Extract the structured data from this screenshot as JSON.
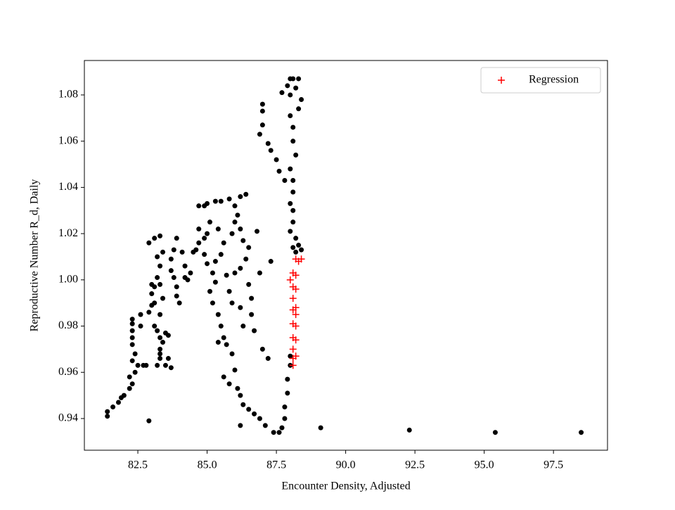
{
  "chart_data": {
    "type": "scatter",
    "xlabel": "Encounter Density, Adjusted",
    "ylabel": "Reproductive Number R_d, Daily",
    "xlim": [
      80.57,
      99.45
    ],
    "ylim": [
      0.9263,
      1.0949
    ],
    "xticks": [
      82.5,
      {
        "value": 85,
        "label": "85.0"
      },
      87.5,
      {
        "value": 90,
        "label": "90.0"
      },
      92.5,
      {
        "value": 95,
        "label": "95.0"
      },
      97.5
    ],
    "yticks": [
      0.94,
      0.96,
      0.98,
      {
        "value": 1,
        "label": "1.00"
      },
      1.02,
      1.04,
      1.06,
      1.08
    ],
    "legend": "upper right",
    "series": [
      {
        "color": "#000000",
        "marker": "circle",
        "x": [
          81.4,
          81.4,
          81.6,
          81.8,
          81.9,
          82.0,
          82.2,
          82.3,
          82.2,
          82.4,
          82.5,
          82.3,
          82.4,
          82.3,
          82.3,
          82.3,
          82.3,
          82.3,
          82.6,
          82.6,
          82.9,
          83.0,
          83.1,
          83.0,
          83.1,
          83.0,
          82.9,
          83.1,
          83.3,
          83.4,
          83.2,
          83.3,
          83.2,
          83.3,
          83.4,
          83.3,
          83.2,
          83.3,
          83.1,
          83.5,
          83.6,
          83.4,
          83.3,
          83.3,
          83.2,
          83.5,
          83.7,
          82.8,
          82.7,
          82.9,
          83.6,
          83.3,
          83.7,
          83.7,
          83.8,
          83.9,
          83.9,
          84.0,
          83.8,
          83.9,
          84.1,
          84.2,
          84.4,
          84.3,
          84.2,
          84.5,
          84.7,
          84.9,
          85.0,
          84.7,
          85.1,
          84.6,
          84.9,
          85.0,
          85.2,
          85.3,
          85.1,
          85.2,
          85.4,
          85.5,
          85.6,
          85.4,
          85.7,
          85.9,
          86.0,
          85.6,
          85.8,
          86.1,
          86.2,
          86.3,
          86.5,
          86.7,
          86.9,
          87.1,
          87.4,
          87.6,
          87.7,
          87.8,
          87.8,
          87.9,
          87.9,
          88.0,
          88.0,
          86.2,
          87.2,
          87.0,
          86.9,
          87.3,
          84.7,
          84.9,
          85.0,
          85.3,
          85.5,
          85.8,
          86.2,
          86.4,
          86.0,
          86.1,
          86.2,
          86.3,
          86.5,
          86.4,
          86.2,
          86.0,
          85.7,
          85.8,
          85.9,
          86.2,
          86.3,
          86.0,
          85.9,
          85.6,
          85.5,
          85.3,
          85.4,
          86.5,
          86.6,
          86.6,
          86.7,
          86.8,
          88.0,
          88.1,
          88.3,
          88.4,
          88.3,
          88.2,
          87.7,
          87.9,
          88.0,
          87.0,
          87.0,
          87.0,
          86.9,
          87.2,
          87.3,
          87.5,
          87.6,
          87.8,
          88.0,
          88.1,
          88.1,
          88.2,
          88.0,
          88.1,
          88.1,
          88.0,
          88.1,
          88.1,
          88.0,
          88.2,
          88.3,
          88.4,
          88.2,
          88.1,
          89.1,
          92.3,
          95.4,
          98.5
        ],
        "values": [
          0.941,
          0.943,
          0.945,
          0.947,
          0.949,
          0.95,
          0.953,
          0.955,
          0.958,
          0.96,
          0.963,
          0.965,
          0.968,
          0.972,
          0.975,
          0.978,
          0.981,
          0.983,
          0.98,
          0.985,
          0.986,
          0.989,
          0.99,
          0.994,
          0.997,
          0.998,
          1.016,
          1.018,
          1.019,
          1.012,
          1.01,
          1.006,
          1.001,
          0.998,
          0.992,
          0.985,
          0.978,
          0.975,
          0.98,
          0.977,
          0.976,
          0.973,
          0.97,
          0.966,
          0.963,
          0.963,
          0.962,
          0.963,
          0.963,
          0.939,
          0.966,
          0.968,
          1.009,
          1.004,
          1.001,
          0.997,
          0.993,
          0.99,
          1.013,
          1.018,
          1.012,
          1.006,
          1.003,
          1.0,
          1.001,
          1.012,
          1.016,
          1.018,
          1.02,
          1.022,
          1.025,
          1.013,
          1.011,
          1.007,
          1.003,
          0.999,
          0.995,
          0.99,
          0.985,
          0.98,
          0.975,
          0.973,
          0.972,
          0.968,
          0.961,
          0.958,
          0.955,
          0.953,
          0.95,
          0.946,
          0.944,
          0.942,
          0.94,
          0.937,
          0.934,
          0.934,
          0.936,
          0.94,
          0.945,
          0.951,
          0.957,
          0.963,
          0.967,
          0.937,
          0.966,
          0.97,
          1.003,
          1.008,
          1.032,
          1.032,
          1.033,
          1.034,
          1.034,
          1.035,
          1.036,
          1.037,
          1.032,
          1.028,
          1.022,
          1.017,
          1.014,
          1.009,
          1.005,
          1.003,
          1.002,
          0.995,
          0.99,
          0.988,
          0.98,
          1.025,
          1.02,
          1.016,
          1.011,
          1.008,
          1.022,
          0.998,
          0.992,
          0.985,
          0.978,
          1.021,
          1.087,
          1.087,
          1.087,
          1.078,
          1.074,
          1.083,
          1.081,
          1.084,
          1.08,
          1.076,
          1.073,
          1.067,
          1.063,
          1.059,
          1.056,
          1.052,
          1.047,
          1.043,
          1.071,
          1.066,
          1.06,
          1.054,
          1.048,
          1.043,
          1.038,
          1.033,
          1.03,
          1.025,
          1.021,
          1.018,
          1.015,
          1.013,
          1.012,
          1.014,
          0.936,
          0.935,
          0.934,
          0.934
        ]
      },
      {
        "name": "Regression",
        "color": "#ff0000",
        "marker": "plus",
        "x": [
          88.2,
          88.4,
          88.3,
          88.0,
          88.1,
          88.2,
          88.1,
          88.2,
          88.1,
          88.2,
          88.1,
          88.2,
          88.1,
          88.2,
          88.1,
          88.2,
          88.1,
          88.2,
          88.1,
          88.1
        ],
        "values": [
          1.009,
          1.009,
          1.008,
          1.0,
          1.003,
          1.002,
          0.997,
          0.996,
          0.992,
          0.988,
          0.987,
          0.985,
          0.981,
          0.98,
          0.975,
          0.974,
          0.97,
          0.967,
          0.966,
          0.963
        ]
      }
    ]
  }
}
